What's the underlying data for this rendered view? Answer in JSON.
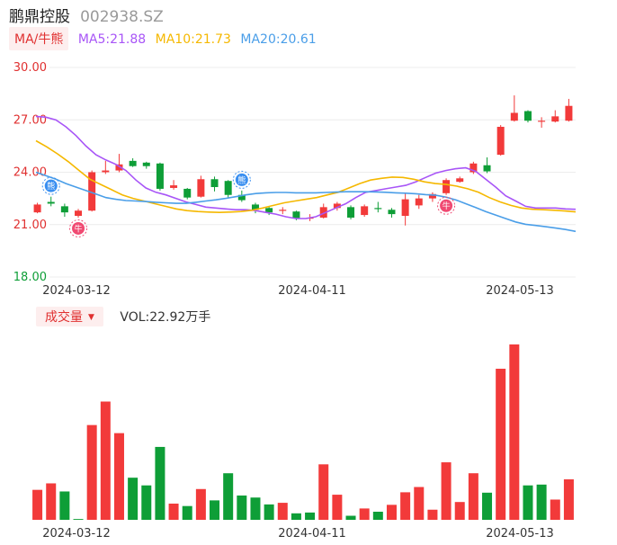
{
  "header": {
    "name": "鹏鼎控股",
    "code": "002938.SZ"
  },
  "ma_legend": {
    "tab": "MA/牛熊",
    "items": [
      {
        "label": "MA5:21.88",
        "color": "#a855f7"
      },
      {
        "label": "MA10:21.73",
        "color": "#f5b800"
      },
      {
        "label": "MA20:20.61",
        "color": "#4a9ee8"
      }
    ]
  },
  "volume_header": {
    "tab": "成交量",
    "text": "VOL:22.92万手"
  },
  "colors": {
    "up": "#f23a3a",
    "down": "#0e9e37",
    "axis_price": "#e03030",
    "axis_low": "#0e9e37",
    "grid": "#ececec"
  },
  "chart_data": [
    {
      "type": "candlestick",
      "yticks": [
        "30.00",
        "27.00",
        "24.00",
        "21.00",
        "18.00"
      ],
      "ylim": [
        18,
        30
      ],
      "xticks": [
        "2024-03-12",
        "2024-04-11",
        "2024-05-13"
      ],
      "grid": true,
      "candles": [
        {
          "o": 21.7,
          "c": 22.15,
          "h": 22.25,
          "l": 21.65
        },
        {
          "o": 22.3,
          "c": 22.2,
          "h": 22.6,
          "l": 22.05
        },
        {
          "o": 22.05,
          "c": 21.7,
          "h": 22.2,
          "l": 21.45
        },
        {
          "o": 21.5,
          "c": 21.8,
          "h": 21.9,
          "l": 21.4
        },
        {
          "o": 21.8,
          "c": 24.0,
          "h": 24.1,
          "l": 21.75
        },
        {
          "o": 24.0,
          "c": 24.1,
          "h": 24.65,
          "l": 23.9
        },
        {
          "o": 24.1,
          "c": 24.45,
          "h": 25.05,
          "l": 24.0
        },
        {
          "o": 24.65,
          "c": 24.35,
          "h": 24.8,
          "l": 24.3
        },
        {
          "o": 24.55,
          "c": 24.35,
          "h": 24.6,
          "l": 24.2
        },
        {
          "o": 24.5,
          "c": 23.05,
          "h": 24.55,
          "l": 22.95
        },
        {
          "o": 23.1,
          "c": 23.25,
          "h": 23.55,
          "l": 23.0
        },
        {
          "o": 23.05,
          "c": 22.55,
          "h": 23.1,
          "l": 22.45
        },
        {
          "o": 22.6,
          "c": 23.6,
          "h": 23.8,
          "l": 22.55
        },
        {
          "o": 23.6,
          "c": 23.15,
          "h": 23.75,
          "l": 22.9
        },
        {
          "o": 23.5,
          "c": 22.7,
          "h": 23.55,
          "l": 22.55
        },
        {
          "o": 22.7,
          "c": 22.4,
          "h": 22.95,
          "l": 22.3
        },
        {
          "o": 22.15,
          "c": 21.85,
          "h": 22.25,
          "l": 21.65
        },
        {
          "o": 21.95,
          "c": 21.7,
          "h": 22.05,
          "l": 21.55
        },
        {
          "o": 21.8,
          "c": 21.85,
          "h": 22.0,
          "l": 21.6
        },
        {
          "o": 21.75,
          "c": 21.35,
          "h": 21.8,
          "l": 21.25
        },
        {
          "o": 21.35,
          "c": 21.4,
          "h": 21.6,
          "l": 21.2
        },
        {
          "o": 21.4,
          "c": 22.0,
          "h": 22.2,
          "l": 21.35
        },
        {
          "o": 21.95,
          "c": 22.2,
          "h": 22.3,
          "l": 21.8
        },
        {
          "o": 22.0,
          "c": 21.4,
          "h": 22.1,
          "l": 21.3
        },
        {
          "o": 21.55,
          "c": 22.05,
          "h": 22.15,
          "l": 21.45
        },
        {
          "o": 21.95,
          "c": 21.9,
          "h": 22.3,
          "l": 21.7
        },
        {
          "o": 21.85,
          "c": 21.6,
          "h": 21.95,
          "l": 21.4
        },
        {
          "o": 21.5,
          "c": 22.45,
          "h": 22.8,
          "l": 20.95
        },
        {
          "o": 22.1,
          "c": 22.5,
          "h": 22.7,
          "l": 21.9
        },
        {
          "o": 22.5,
          "c": 22.75,
          "h": 22.85,
          "l": 22.3
        },
        {
          "o": 22.8,
          "c": 23.55,
          "h": 23.65,
          "l": 22.7
        },
        {
          "o": 23.45,
          "c": 23.65,
          "h": 23.75,
          "l": 23.4
        },
        {
          "o": 24.0,
          "c": 24.5,
          "h": 24.6,
          "l": 23.9
        },
        {
          "o": 24.4,
          "c": 24.05,
          "h": 24.85,
          "l": 23.95
        },
        {
          "o": 25.0,
          "c": 26.6,
          "h": 26.7,
          "l": 24.95
        },
        {
          "o": 26.95,
          "c": 27.4,
          "h": 28.4,
          "l": 26.9
        },
        {
          "o": 27.5,
          "c": 26.95,
          "h": 27.55,
          "l": 26.85
        },
        {
          "o": 26.9,
          "c": 26.95,
          "h": 27.15,
          "l": 26.55
        },
        {
          "o": 26.9,
          "c": 27.2,
          "h": 27.55,
          "l": 26.85
        },
        {
          "o": 26.95,
          "c": 27.8,
          "h": 28.2,
          "l": 26.9
        }
      ],
      "ma5": [
        27.2,
        27.15,
        27.0,
        26.6,
        26.1,
        25.5,
        25.0,
        24.7,
        24.45,
        24.1,
        23.55,
        23.1,
        22.85,
        22.7,
        22.5,
        22.3,
        22.15,
        22.0,
        21.95,
        21.9,
        21.85,
        21.85,
        21.8,
        21.7,
        21.6,
        21.45,
        21.35,
        21.35,
        21.45,
        21.7,
        21.95,
        22.2,
        22.55,
        22.85,
        22.95,
        23.05,
        23.15,
        23.25,
        23.45,
        23.7,
        23.95,
        24.1,
        24.2,
        24.25,
        24.05,
        23.6,
        23.15,
        22.65,
        22.35,
        22.05,
        21.95,
        21.95,
        21.95,
        21.9,
        21.88
      ],
      "ma10": [
        25.8,
        25.45,
        25.05,
        24.6,
        24.1,
        23.6,
        23.3,
        23.0,
        22.7,
        22.5,
        22.35,
        22.2,
        22.05,
        21.9,
        21.8,
        21.75,
        21.72,
        21.7,
        21.72,
        21.75,
        21.82,
        21.95,
        22.1,
        22.25,
        22.35,
        22.45,
        22.55,
        22.7,
        22.85,
        23.1,
        23.35,
        23.55,
        23.65,
        23.72,
        23.7,
        23.6,
        23.45,
        23.35,
        23.3,
        23.2,
        23.05,
        22.85,
        22.55,
        22.3,
        22.1,
        21.95,
        21.88,
        21.85,
        21.82,
        21.78,
        21.73
      ],
      "ma20": [
        24.0,
        23.8,
        23.6,
        23.35,
        23.15,
        22.95,
        22.75,
        22.55,
        22.45,
        22.38,
        22.35,
        22.32,
        22.28,
        22.25,
        22.22,
        22.22,
        22.28,
        22.35,
        22.42,
        22.5,
        22.6,
        22.7,
        22.78,
        22.82,
        22.84,
        22.84,
        22.82,
        22.82,
        22.82,
        22.84,
        22.86,
        22.88,
        22.88,
        22.88,
        22.87,
        22.85,
        22.82,
        22.8,
        22.77,
        22.72,
        22.68,
        22.58,
        22.42,
        22.2,
        21.98,
        21.75,
        21.55,
        21.35,
        21.15,
        21.02,
        20.95,
        20.88,
        20.8,
        20.72,
        20.61
      ],
      "markers": [
        {
          "candle": 1,
          "label": "熊",
          "kind": "bear"
        },
        {
          "candle": 3,
          "label": "牛",
          "kind": "bull"
        },
        {
          "candle": 15,
          "label": "熊",
          "kind": "bear"
        },
        {
          "candle": 30,
          "label": "牛",
          "kind": "bull"
        }
      ]
    },
    {
      "type": "bar",
      "xticks": [
        "2024-03-12",
        "2024-04-11",
        "2024-05-13"
      ],
      "values": [
        7.4,
        9.0,
        7.0,
        0.2,
        23.4,
        29.2,
        21.4,
        10.4,
        8.5,
        18.0,
        4.0,
        3.4,
        7.6,
        4.8,
        11.5,
        6.0,
        5.5,
        3.8,
        4.2,
        1.6,
        1.8,
        13.7,
        6.2,
        1.0,
        2.8,
        2.0,
        3.7,
        6.8,
        8.1,
        2.5,
        14.2,
        4.4,
        11.5,
        6.7,
        37.3,
        43.3,
        8.5,
        8.7,
        5.0,
        10.0
      ],
      "direction": [
        "up",
        "up",
        "down",
        "down",
        "up",
        "up",
        "up",
        "down",
        "down",
        "down",
        "up",
        "down",
        "up",
        "down",
        "down",
        "down",
        "down",
        "down",
        "up",
        "down",
        "down",
        "up",
        "up",
        "down",
        "up",
        "down",
        "up",
        "up",
        "up",
        "up",
        "up",
        "up",
        "up",
        "down",
        "up",
        "up",
        "down",
        "down",
        "up",
        "up"
      ]
    }
  ]
}
